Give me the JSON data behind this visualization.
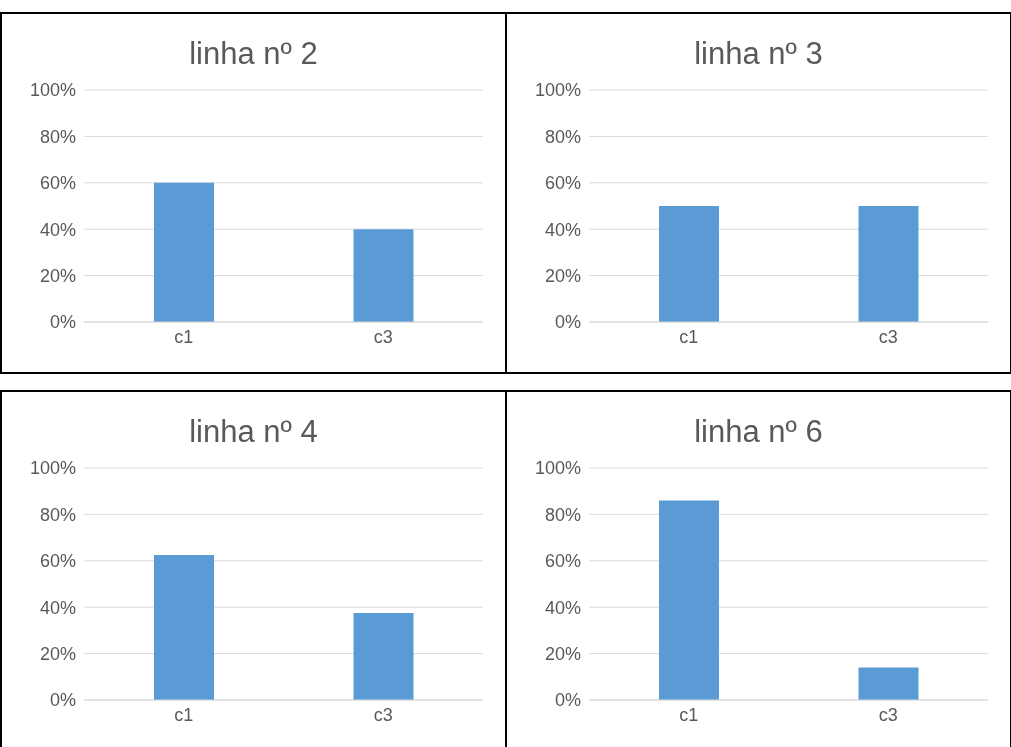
{
  "chart_data": [
    {
      "type": "bar",
      "title": "linha nº 2",
      "categories": [
        "c1",
        "c3"
      ],
      "values": [
        60,
        40
      ],
      "color": "#5b9bd5",
      "ylim": [
        0,
        100
      ],
      "yticks": [
        {
          "value": 0,
          "label": "0%"
        },
        {
          "value": 20,
          "label": "20%"
        },
        {
          "value": 40,
          "label": "40%"
        },
        {
          "value": 60,
          "label": "60%"
        },
        {
          "value": 80,
          "label": "80%"
        },
        {
          "value": 100,
          "label": "100%"
        }
      ],
      "grid": "y",
      "legend": false
    },
    {
      "type": "bar",
      "title": "linha nº 3",
      "categories": [
        "c1",
        "c3"
      ],
      "values": [
        50,
        50
      ],
      "color": "#5b9bd5",
      "ylim": [
        0,
        100
      ],
      "yticks": [
        {
          "value": 0,
          "label": "0%"
        },
        {
          "value": 20,
          "label": "20%"
        },
        {
          "value": 40,
          "label": "40%"
        },
        {
          "value": 60,
          "label": "60%"
        },
        {
          "value": 80,
          "label": "80%"
        },
        {
          "value": 100,
          "label": "100%"
        }
      ],
      "grid": "y",
      "legend": false
    },
    {
      "type": "bar",
      "title": "linha nº 4",
      "categories": [
        "c1",
        "c3"
      ],
      "values": [
        62.5,
        37.5
      ],
      "color": "#5b9bd5",
      "ylim": [
        0,
        100
      ],
      "yticks": [
        {
          "value": 0,
          "label": "0%"
        },
        {
          "value": 20,
          "label": "20%"
        },
        {
          "value": 40,
          "label": "40%"
        },
        {
          "value": 60,
          "label": "60%"
        },
        {
          "value": 80,
          "label": "80%"
        },
        {
          "value": 100,
          "label": "100%"
        }
      ],
      "grid": "y",
      "legend": false
    },
    {
      "type": "bar",
      "title": "linha nº 6",
      "categories": [
        "c1",
        "c3"
      ],
      "values": [
        86,
        14
      ],
      "color": "#5b9bd5",
      "ylim": [
        0,
        100
      ],
      "yticks": [
        {
          "value": 0,
          "label": "0%"
        },
        {
          "value": 20,
          "label": "20%"
        },
        {
          "value": 40,
          "label": "40%"
        },
        {
          "value": 60,
          "label": "60%"
        },
        {
          "value": 80,
          "label": "80%"
        },
        {
          "value": 100,
          "label": "100%"
        }
      ],
      "grid": "y",
      "legend": false
    }
  ]
}
